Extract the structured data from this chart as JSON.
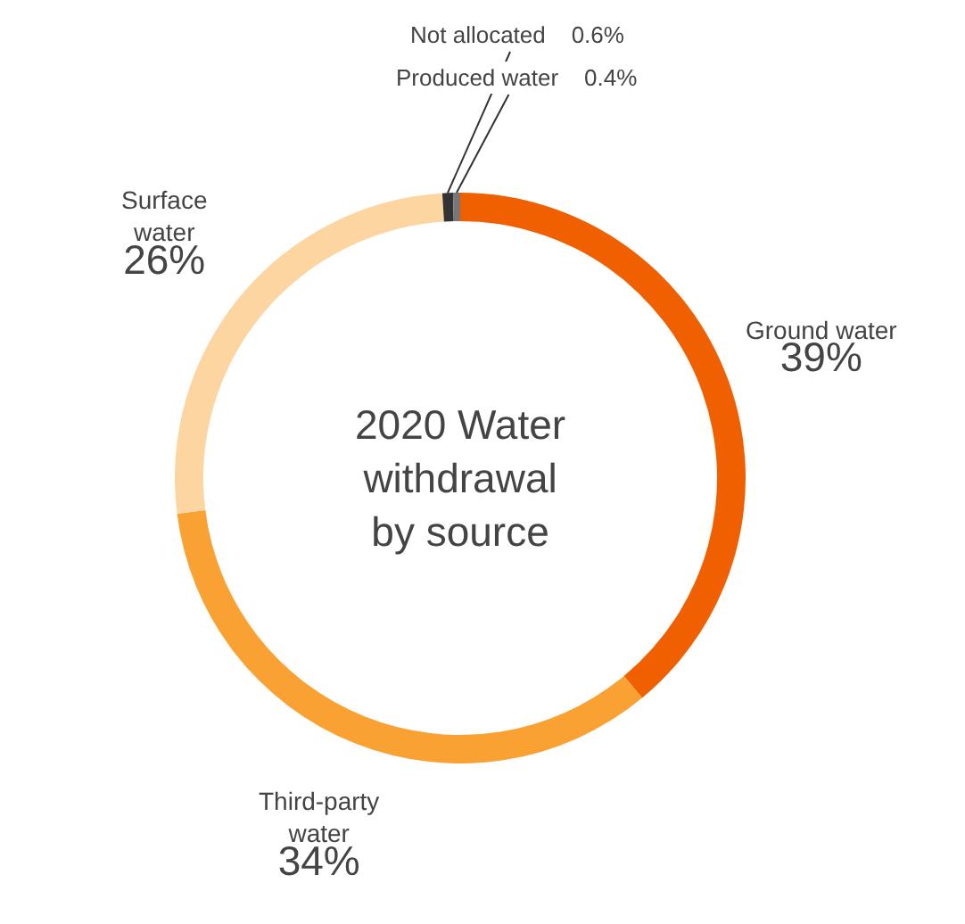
{
  "chart_data": {
    "type": "donut",
    "title": "2020 Water withdrawal by source",
    "categories": [
      "Ground water",
      "Third-party water",
      "Surface water",
      "Not allocated",
      "Produced water"
    ],
    "values": [
      39,
      34,
      26,
      0.6,
      0.4
    ],
    "value_labels": [
      "39%",
      "34%",
      "26%",
      "0.6%",
      "0.4%"
    ],
    "colors": [
      "#f06000",
      "#f9a132",
      "#fdd5a0",
      "#333333",
      "#777777"
    ],
    "legend": false
  }
}
